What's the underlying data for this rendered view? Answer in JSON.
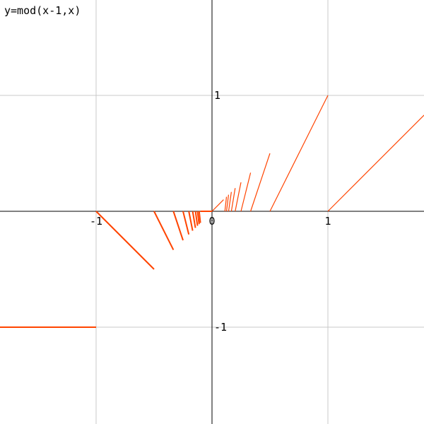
{
  "chart_data": {
    "type": "line",
    "title": "y=mod(x-1,x)",
    "xlabel": "",
    "ylabel": "",
    "xlim": [
      -1.83,
      1.83
    ],
    "ylim": [
      -1.83,
      1.83
    ],
    "grid": true,
    "x_ticks": [
      -1,
      0,
      1
    ],
    "x_tick_labels": [
      "-1",
      "0",
      "1"
    ],
    "y_ticks": [
      1,
      -1
    ],
    "y_tick_labels": [
      "1",
      "-1"
    ],
    "series": [
      {
        "color": "#ff4400",
        "segments": [
          [
            [
              -1.83,
              -1
            ],
            [
              -1,
              -1
            ]
          ],
          [
            [
              -1,
              0
            ],
            [
              -0.5,
              -0.5
            ]
          ],
          [
            [
              -0.5,
              0
            ],
            [
              -0.333,
              -0.333
            ]
          ],
          [
            [
              -0.333,
              0
            ],
            [
              -0.25,
              -0.25
            ]
          ],
          [
            [
              -0.25,
              0
            ],
            [
              -0.2,
              -0.2
            ]
          ],
          [
            [
              -0.2,
              0
            ],
            [
              -0.167,
              -0.167
            ]
          ],
          [
            [
              -0.167,
              0
            ],
            [
              -0.143,
              -0.143
            ]
          ],
          [
            [
              -0.143,
              0
            ],
            [
              -0.125,
              -0.125
            ]
          ],
          [
            [
              -0.125,
              0
            ],
            [
              -0.111,
              -0.111
            ]
          ],
          [
            [
              -0.111,
              0
            ],
            [
              -0.1,
              -0.1
            ]
          ],
          [
            [
              -0.1,
              0
            ],
            [
              0,
              0
            ]
          ],
          [
            [
              0,
              0
            ],
            [
              0.1,
              0.1
            ]
          ],
          [
            [
              0.111,
              0
            ],
            [
              0.125,
              0.125
            ]
          ],
          [
            [
              0.125,
              0
            ],
            [
              0.143,
              0.143
            ]
          ],
          [
            [
              0.143,
              0
            ],
            [
              0.167,
              0.167
            ]
          ],
          [
            [
              0.167,
              0
            ],
            [
              0.2,
              0.2
            ]
          ],
          [
            [
              0.2,
              0
            ],
            [
              0.25,
              0.25
            ]
          ],
          [
            [
              0.25,
              0
            ],
            [
              0.333,
              0.333
            ]
          ],
          [
            [
              0.333,
              0
            ],
            [
              0.5,
              0.5
            ]
          ],
          [
            [
              0.5,
              0
            ],
            [
              1,
              1
            ]
          ],
          [
            [
              1,
              0
            ],
            [
              1.83,
              0.83
            ]
          ]
        ]
      }
    ]
  }
}
